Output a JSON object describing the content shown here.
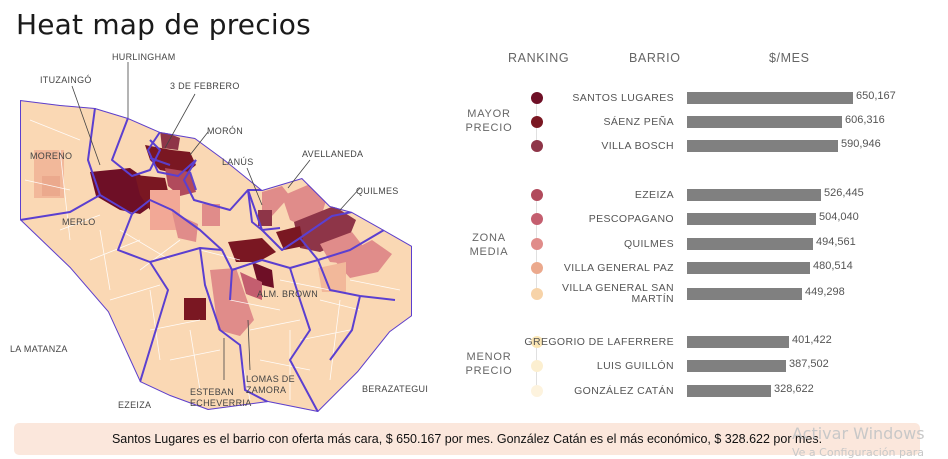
{
  "title": "Heat map de precios",
  "headers": {
    "ranking": "RANKING",
    "barrio": "BARRIO",
    "precio": "$/MES"
  },
  "groups": [
    {
      "label": [
        "MAYOR",
        "PRECIO"
      ]
    },
    {
      "label": [
        "ZONA",
        "MEDIA"
      ]
    },
    {
      "label": [
        "MENOR",
        "PRECIO"
      ]
    }
  ],
  "chart_data": {
    "type": "bar",
    "orientation": "horizontal",
    "title": "Heat map de precios",
    "xlabel": "$/MES",
    "ylabel": "BARRIO",
    "xlim": [
      0,
      650167
    ],
    "categories": [
      "SANTOS LUGARES",
      "SÁENZ PEÑA",
      "VILLA BOSCH",
      "EZEIZA",
      "PESCOPAGANO",
      "QUILMES",
      "VILLA GENERAL PAZ",
      "VILLA GENERAL SAN MARTÍN",
      "GREGORIO DE LAFERRERE",
      "LUIS GUILLÓN",
      "GONZÁLEZ CATÁN"
    ],
    "values": [
      650167,
      606316,
      590946,
      526445,
      504040,
      494561,
      480514,
      449298,
      401422,
      387502,
      328622
    ],
    "value_labels": [
      "650,167",
      "606,316",
      "590,946",
      "526,445",
      "504,040",
      "494,561",
      "480,514",
      "449,298",
      "401,422",
      "387,502",
      "328,622"
    ],
    "group_index": [
      0,
      0,
      0,
      1,
      1,
      1,
      1,
      1,
      2,
      2,
      2
    ],
    "rank_colors": [
      "#6e0f26",
      "#7a1722",
      "#8e3548",
      "#b14a5c",
      "#c45e6f",
      "#e08c8a",
      "#eba98d",
      "#f7d3a8",
      "#fbe6b4",
      "#fcefd0",
      "#fdf3de"
    ]
  },
  "map": {
    "labels": [
      "HURLINGHAM",
      "ITUZAINGÓ",
      "3 DE FEBRERO",
      "MORÓN",
      "MORENO",
      "LANÚS",
      "AVELLANEDA",
      "QUILMES",
      "MERLO",
      "ALM. BROWN",
      "LA MATANZA",
      "ESTEBAN ECHEVERRIA",
      "LOMAS DE ZAMORA",
      "EZEIZA",
      "BERAZATEGUI"
    ]
  },
  "footer": "Santos Lugares es el barrio con oferta más cara, $ 650.167 por mes. González Catán es el más económico, $ 328.622 por mes.",
  "watermark": {
    "line1": "Activar Windows",
    "line2": "Ve a Configuración para"
  }
}
